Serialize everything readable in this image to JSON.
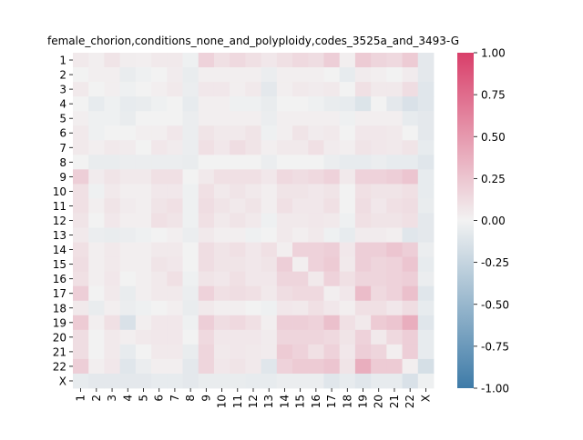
{
  "chart_data": {
    "type": "heatmap",
    "title": "female_chorion,conditions_none_and_polyploidy,codes_3525a_and_3493-G",
    "xlabel": "",
    "ylabel": "",
    "row_labels": [
      "1",
      "2",
      "3",
      "4",
      "5",
      "6",
      "7",
      "8",
      "9",
      "10",
      "11",
      "12",
      "13",
      "14",
      "15",
      "16",
      "17",
      "18",
      "19",
      "20",
      "21",
      "22",
      "X"
    ],
    "col_labels": [
      "1",
      "2",
      "3",
      "4",
      "5",
      "6",
      "7",
      "8",
      "9",
      "10",
      "11",
      "12",
      "13",
      "14",
      "15",
      "16",
      "17",
      "18",
      "19",
      "20",
      "21",
      "22",
      "X"
    ],
    "values": [
      [
        0.05,
        0.02,
        0.08,
        0.03,
        0.02,
        0.05,
        0.05,
        -0.02,
        0.18,
        0.1,
        0.14,
        0.1,
        0.06,
        0.1,
        0.14,
        0.12,
        0.2,
        0.02,
        0.22,
        0.16,
        0.14,
        0.22,
        -0.08
      ],
      [
        0.0,
        0.02,
        0.02,
        -0.05,
        -0.02,
        0.0,
        0.04,
        -0.05,
        0.02,
        0.02,
        0.02,
        0.02,
        -0.04,
        0.02,
        0.02,
        0.02,
        0.0,
        -0.06,
        0.04,
        0.02,
        0.0,
        0.04,
        -0.08
      ],
      [
        0.05,
        0.0,
        0.02,
        -0.02,
        0.0,
        0.02,
        0.05,
        -0.04,
        0.06,
        0.06,
        0.02,
        0.05,
        -0.08,
        0.02,
        0.05,
        0.04,
        0.05,
        0.0,
        0.1,
        0.05,
        0.05,
        0.12,
        -0.1
      ],
      [
        0.0,
        -0.06,
        -0.02,
        -0.06,
        -0.05,
        -0.02,
        0.0,
        -0.06,
        0.02,
        0.02,
        -0.02,
        -0.02,
        -0.05,
        0.0,
        0.0,
        -0.02,
        -0.05,
        -0.06,
        -0.12,
        0.0,
        -0.08,
        -0.14,
        -0.1
      ],
      [
        0.02,
        -0.02,
        -0.02,
        -0.05,
        0.0,
        0.0,
        0.0,
        -0.04,
        0.02,
        0.02,
        0.02,
        0.02,
        -0.04,
        0.02,
        0.02,
        0.02,
        0.02,
        -0.02,
        0.02,
        0.02,
        0.02,
        -0.06,
        -0.08
      ],
      [
        0.05,
        -0.02,
        0.0,
        0.0,
        0.02,
        0.02,
        0.06,
        -0.04,
        0.08,
        0.05,
        0.05,
        0.08,
        -0.02,
        0.02,
        0.08,
        0.04,
        0.05,
        0.0,
        0.06,
        0.06,
        0.05,
        0.0,
        -0.08
      ],
      [
        0.05,
        0.02,
        0.05,
        0.04,
        0.0,
        0.06,
        0.04,
        -0.04,
        0.1,
        0.06,
        0.12,
        0.08,
        0.02,
        0.05,
        0.05,
        0.1,
        0.04,
        0.02,
        0.08,
        0.06,
        0.05,
        0.08,
        -0.06
      ],
      [
        0.0,
        -0.05,
        -0.05,
        -0.04,
        -0.04,
        -0.04,
        -0.04,
        -0.05,
        0.0,
        0.0,
        0.0,
        0.0,
        -0.04,
        0.0,
        0.0,
        0.0,
        -0.04,
        -0.06,
        -0.06,
        -0.04,
        -0.06,
        -0.06,
        -0.1
      ],
      [
        0.2,
        0.04,
        0.08,
        0.05,
        0.05,
        0.1,
        0.1,
        0.0,
        0.05,
        0.1,
        0.1,
        0.1,
        0.06,
        0.14,
        0.12,
        0.14,
        0.18,
        0.05,
        0.18,
        0.18,
        0.2,
        0.25,
        -0.06
      ],
      [
        0.1,
        -0.02,
        0.05,
        0.02,
        0.02,
        0.06,
        0.06,
        -0.02,
        0.1,
        0.05,
        0.08,
        0.05,
        0.02,
        0.08,
        0.08,
        0.06,
        0.08,
        0.0,
        0.1,
        0.08,
        0.08,
        0.1,
        -0.06
      ],
      [
        0.1,
        0.02,
        0.08,
        0.04,
        0.02,
        0.08,
        0.1,
        -0.02,
        0.12,
        0.08,
        0.05,
        0.08,
        0.02,
        0.1,
        0.06,
        0.06,
        0.1,
        0.0,
        0.12,
        0.06,
        0.1,
        0.12,
        -0.05
      ],
      [
        0.08,
        0.0,
        0.06,
        0.02,
        0.02,
        0.1,
        0.08,
        -0.02,
        0.1,
        0.05,
        0.08,
        0.05,
        -0.02,
        0.05,
        0.05,
        0.06,
        0.05,
        -0.02,
        0.1,
        0.08,
        0.08,
        0.1,
        -0.08
      ],
      [
        0.05,
        -0.04,
        -0.05,
        -0.04,
        -0.02,
        0.0,
        0.02,
        -0.04,
        0.05,
        0.02,
        0.02,
        -0.02,
        0.0,
        0.05,
        0.02,
        0.05,
        -0.02,
        -0.06,
        0.04,
        0.04,
        0.02,
        -0.1,
        -0.08
      ],
      [
        0.1,
        0.02,
        0.05,
        0.02,
        0.02,
        0.05,
        0.05,
        0.0,
        0.12,
        0.08,
        0.1,
        0.06,
        0.1,
        0.02,
        0.18,
        0.18,
        0.2,
        0.06,
        0.2,
        0.2,
        0.25,
        0.2,
        -0.04
      ],
      [
        0.12,
        0.02,
        0.05,
        0.02,
        0.02,
        0.08,
        0.06,
        0.0,
        0.12,
        0.08,
        0.08,
        0.06,
        0.08,
        0.2,
        0.02,
        0.18,
        0.22,
        0.05,
        0.2,
        0.16,
        0.18,
        0.25,
        -0.06
      ],
      [
        0.1,
        0.02,
        0.06,
        0.0,
        0.02,
        0.05,
        0.1,
        -0.02,
        0.08,
        0.06,
        0.1,
        0.06,
        0.06,
        0.16,
        0.16,
        0.05,
        0.18,
        0.1,
        0.16,
        0.16,
        0.18,
        0.2,
        -0.04
      ],
      [
        0.2,
        0.0,
        0.05,
        -0.05,
        0.02,
        0.05,
        0.05,
        -0.04,
        0.18,
        0.1,
        0.12,
        0.1,
        0.05,
        0.12,
        0.14,
        0.14,
        0.02,
        0.06,
        0.3,
        0.14,
        0.18,
        0.28,
        -0.1
      ],
      [
        0.05,
        -0.05,
        0.02,
        -0.04,
        -0.02,
        0.0,
        0.02,
        -0.05,
        0.05,
        0.02,
        0.02,
        0.0,
        -0.02,
        0.06,
        0.05,
        0.1,
        0.06,
        0.02,
        0.1,
        0.1,
        0.06,
        0.12,
        -0.06
      ],
      [
        0.22,
        0.02,
        0.1,
        -0.14,
        0.02,
        0.06,
        0.06,
        -0.02,
        0.2,
        0.12,
        0.14,
        0.1,
        0.02,
        0.2,
        0.2,
        0.18,
        0.28,
        0.1,
        0.05,
        0.22,
        0.25,
        0.38,
        -0.1
      ],
      [
        0.12,
        0.0,
        0.05,
        0.02,
        0.05,
        0.06,
        0.06,
        0.0,
        0.14,
        0.06,
        0.06,
        0.06,
        0.04,
        0.16,
        0.16,
        0.16,
        0.14,
        0.08,
        0.18,
        0.05,
        0.14,
        0.2,
        -0.06
      ],
      [
        0.12,
        0.0,
        0.05,
        -0.06,
        0.0,
        0.05,
        0.05,
        -0.05,
        0.16,
        0.05,
        0.06,
        0.05,
        0.04,
        0.22,
        0.18,
        0.1,
        0.18,
        0.06,
        0.2,
        0.16,
        0.02,
        0.2,
        -0.06
      ],
      [
        0.2,
        0.02,
        0.06,
        -0.1,
        -0.04,
        0.02,
        0.02,
        -0.08,
        0.16,
        0.06,
        0.08,
        0.05,
        -0.1,
        0.18,
        0.22,
        0.22,
        0.25,
        0.08,
        0.38,
        0.22,
        0.22,
        0.02,
        -0.16
      ],
      [
        -0.06,
        -0.08,
        -0.08,
        -0.08,
        -0.08,
        -0.06,
        -0.06,
        -0.08,
        -0.05,
        -0.05,
        -0.05,
        -0.06,
        -0.06,
        -0.04,
        -0.04,
        -0.04,
        -0.1,
        -0.06,
        -0.1,
        -0.06,
        -0.06,
        -0.14,
        -0.02
      ]
    ],
    "vmin": -1.0,
    "vmax": 1.0,
    "colorbar_ticks": [
      "-1.00",
      "-0.75",
      "-0.50",
      "-0.25",
      "0.00",
      "0.25",
      "0.50",
      "0.75",
      "1.00"
    ],
    "colorbar_tick_values": [
      -1.0,
      -0.75,
      -0.5,
      -0.25,
      0.0,
      0.25,
      0.5,
      0.75,
      1.0
    ],
    "colormap": {
      "low": "#3e7ba8",
      "mid": "#f2f2f2",
      "high": "#d93f6a"
    },
    "legend": "colorbar-right",
    "grid": false
  }
}
